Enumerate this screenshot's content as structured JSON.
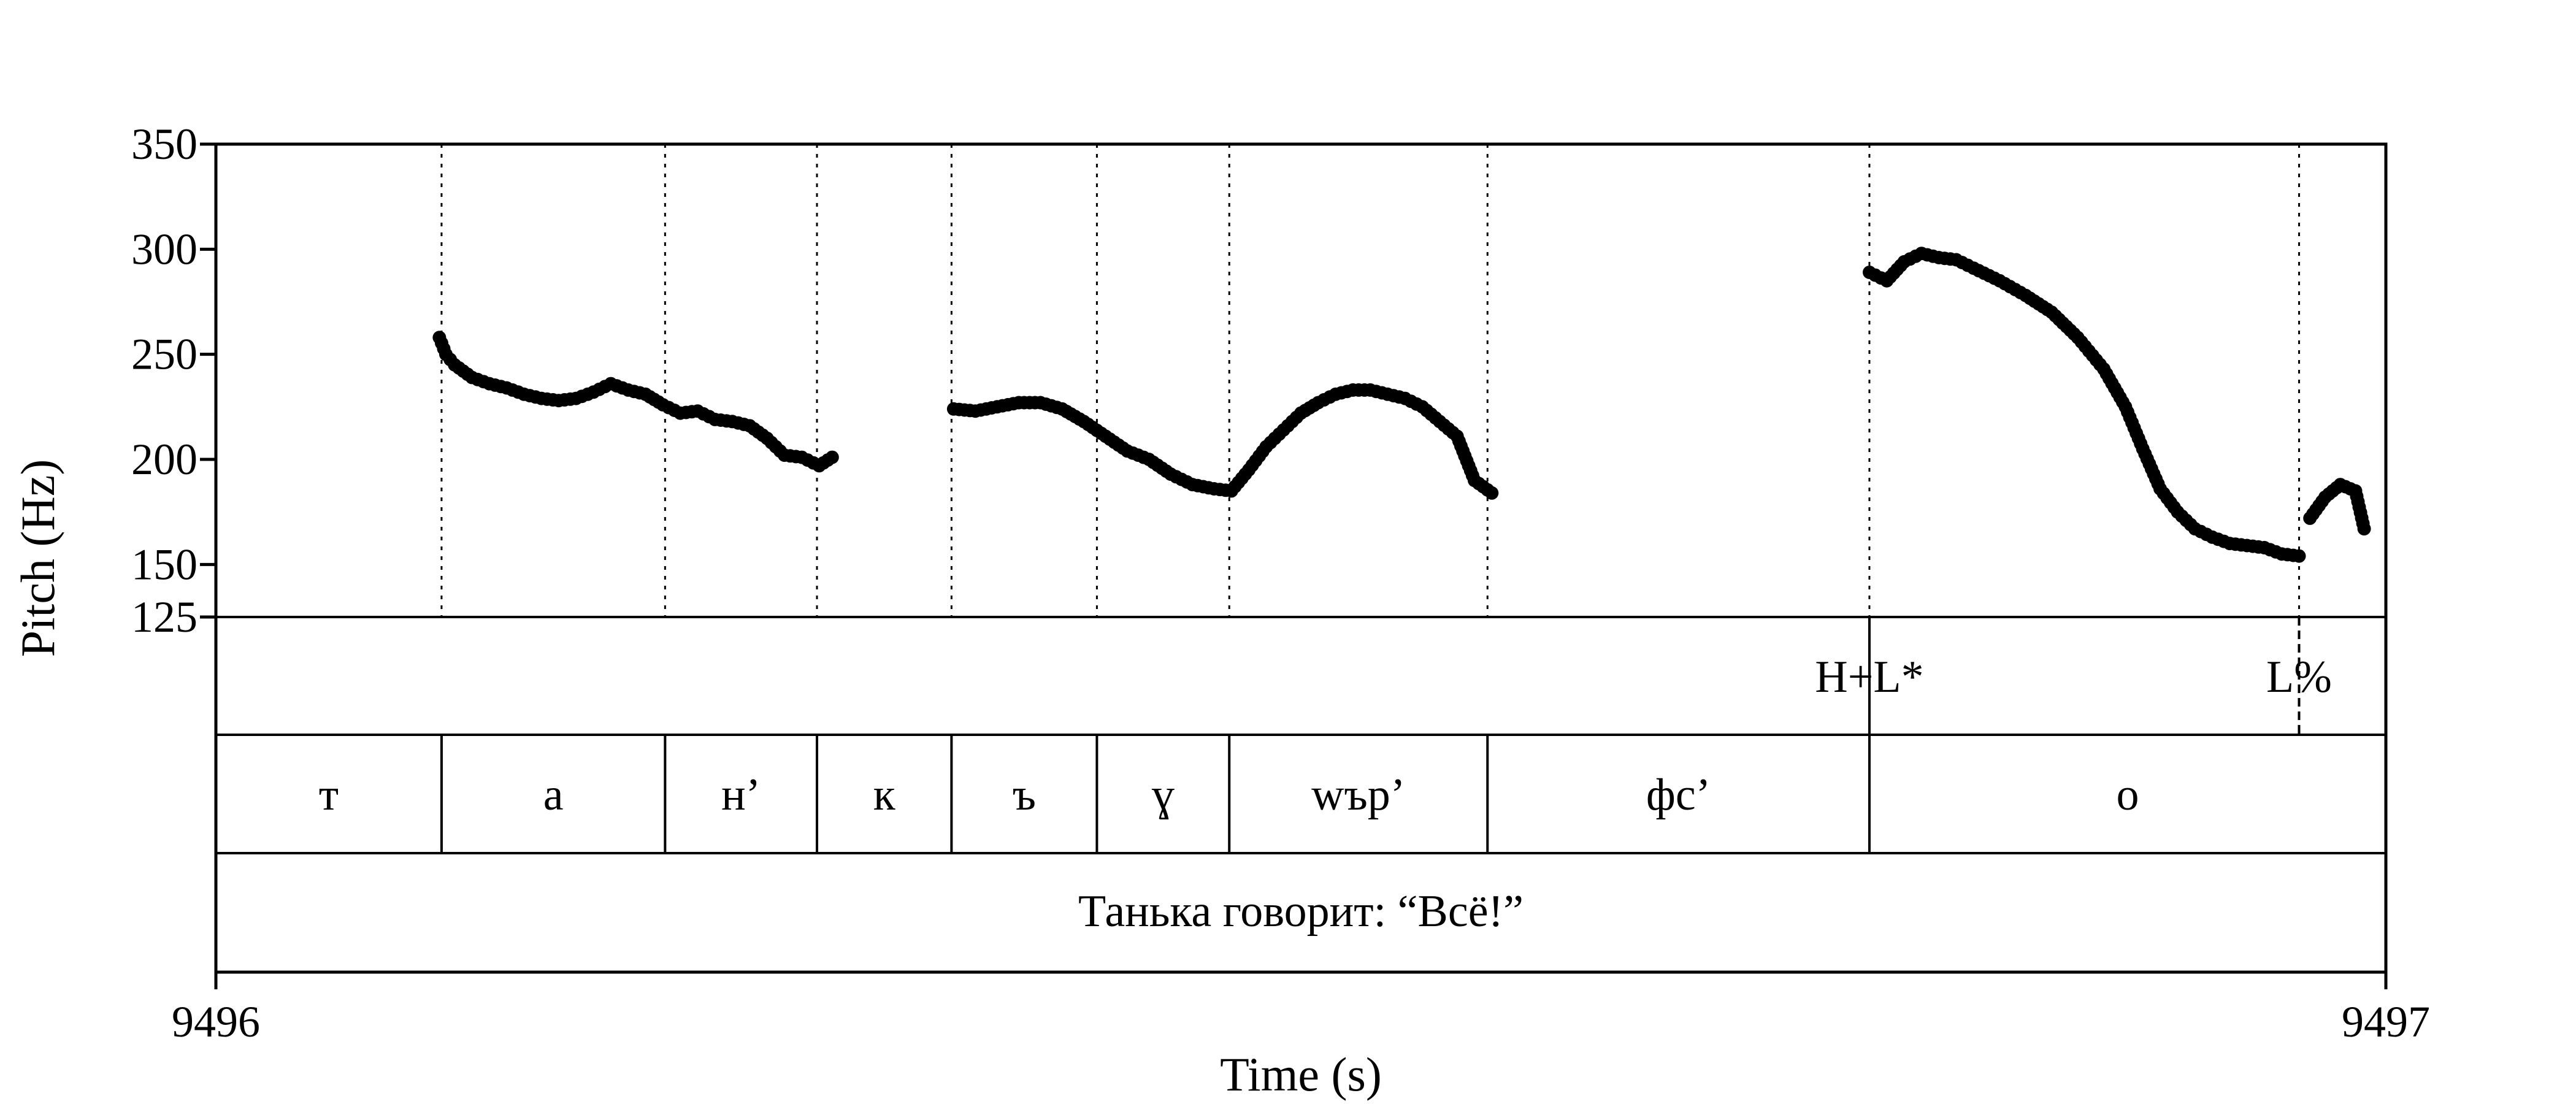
{
  "chart_data": {
    "type": "scatter",
    "xlabel": "Time (s)",
    "ylabel": "Pitch (Hz)",
    "xlim": [
      9496,
      9497
    ],
    "ylim": [
      125,
      350
    ],
    "x_ticks": [
      {
        "value": 9496,
        "label": "9496"
      },
      {
        "value": 9497,
        "label": "9497"
      }
    ],
    "y_ticks": [
      {
        "value": 350,
        "label": "350"
      },
      {
        "value": 300,
        "label": "300"
      },
      {
        "value": 250,
        "label": "250"
      },
      {
        "value": 200,
        "label": "200"
      },
      {
        "value": 150,
        "label": "150"
      },
      {
        "value": 125,
        "label": "125"
      }
    ],
    "boundaries": [
      9496.104,
      9496.207,
      9496.277,
      9496.339,
      9496.406,
      9496.467,
      9496.586,
      9496.762,
      9496.96
    ],
    "tones": [
      {
        "time": 9496.762,
        "label": "H+L*"
      },
      {
        "time": 9496.96,
        "label": "L%"
      }
    ],
    "segments": [
      {
        "start": 9496.0,
        "end": 9496.104,
        "label": "т"
      },
      {
        "start": 9496.104,
        "end": 9496.207,
        "label": "а"
      },
      {
        "start": 9496.207,
        "end": 9496.277,
        "label": "н’"
      },
      {
        "start": 9496.277,
        "end": 9496.339,
        "label": "к"
      },
      {
        "start": 9496.339,
        "end": 9496.406,
        "label": "ъ"
      },
      {
        "start": 9496.406,
        "end": 9496.467,
        "label": "ɣ"
      },
      {
        "start": 9496.467,
        "end": 9496.586,
        "label": "wър’"
      },
      {
        "start": 9496.586,
        "end": 9496.762,
        "label": "фс’"
      },
      {
        "start": 9496.762,
        "end": 9497.0,
        "label": "о"
      }
    ],
    "sentence": "Танька говорит: “Всё!”",
    "pitch_series": [
      {
        "x": [
          9496.103,
          9496.106,
          9496.11,
          9496.118,
          9496.126,
          9496.134,
          9496.142,
          9496.15,
          9496.158,
          9496.166,
          9496.174,
          9496.182,
          9496.19,
          9496.198,
          9496.206,
          9496.214,
          9496.222,
          9496.23,
          9496.238,
          9496.246,
          9496.254,
          9496.262,
          9496.27,
          9496.278,
          9496.284
        ],
        "y": [
          258,
          250,
          245,
          239,
          236,
          234,
          231,
          229,
          228,
          229,
          232,
          236,
          233,
          231,
          226,
          222,
          223,
          219,
          218,
          216,
          210,
          202,
          201,
          197,
          201
        ]
      },
      {
        "x": [
          9496.34,
          9496.35,
          9496.36,
          9496.37,
          9496.38,
          9496.39,
          9496.4,
          9496.41,
          9496.42,
          9496.43,
          9496.44,
          9496.45,
          9496.46,
          9496.468,
          9496.476,
          9496.484,
          9496.492,
          9496.5,
          9496.508,
          9496.516,
          9496.524,
          9496.532,
          9496.54,
          9496.548,
          9496.556,
          9496.564,
          9496.572,
          9496.58,
          9496.588
        ],
        "y": [
          224,
          223,
          225,
          227,
          227,
          224,
          218,
          211,
          204,
          200,
          193,
          188,
          186,
          185,
          195,
          206,
          214,
          222,
          227,
          231,
          233,
          233,
          231,
          229,
          225,
          218,
          211,
          190,
          184
        ]
      },
      {
        "x": [
          9496.762,
          9496.77,
          9496.778,
          9496.786,
          9496.794,
          9496.802,
          9496.81,
          9496.822,
          9496.834,
          9496.846,
          9496.858,
          9496.87,
          9496.88,
          9496.888,
          9496.896,
          9496.904,
          9496.912,
          9496.92,
          9496.928,
          9496.936,
          9496.944,
          9496.952,
          9496.96
        ],
        "y": [
          289,
          285,
          294,
          298,
          296,
          295,
          291,
          285,
          278,
          270,
          258,
          243,
          225,
          205,
          186,
          175,
          167,
          163,
          160,
          159,
          158,
          155,
          154
        ]
      },
      {
        "x": [
          9496.965,
          9496.972,
          9496.979,
          9496.986,
          9496.99
        ],
        "y": [
          172,
          182,
          188,
          185,
          167
        ]
      }
    ]
  }
}
